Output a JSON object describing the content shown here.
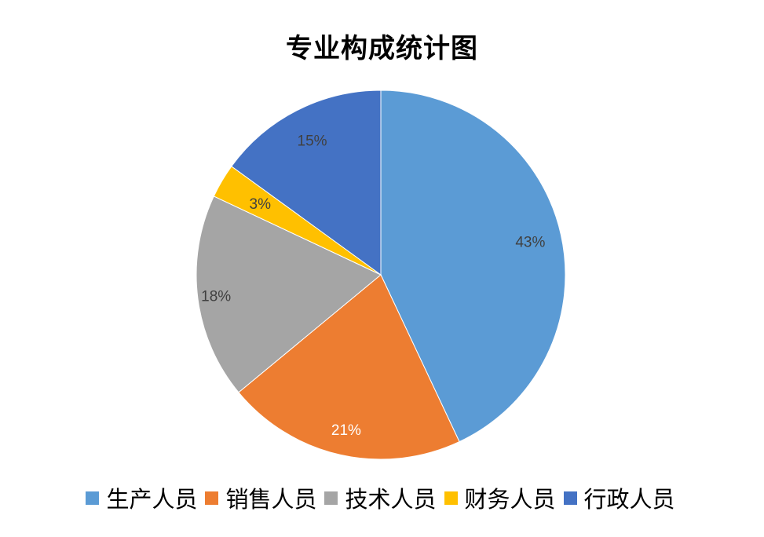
{
  "title": "专业构成统计图",
  "chart_data": {
    "type": "pie",
    "title": "专业构成统计图",
    "categories": [
      "生产人员",
      "销售人员",
      "技术人员",
      "财务人员",
      "行政人员"
    ],
    "values": [
      43,
      21,
      18,
      3,
      15
    ],
    "labels": [
      "43%",
      "21%",
      "18%",
      "3%",
      "15%"
    ],
    "colors": [
      "#5B9BD5",
      "#ED7D31",
      "#A5A5A5",
      "#FFC000",
      "#4472C4"
    ],
    "label_colors": [
      "#404040",
      "#FFFFFF",
      "#404040",
      "#404040",
      "#404040"
    ],
    "start_angle": "12 o'clock, clockwise",
    "legend_position": "bottom"
  },
  "legend": {
    "items": [
      {
        "label": "生产人员",
        "color": "#5B9BD5"
      },
      {
        "label": "销售人员",
        "color": "#ED7D31"
      },
      {
        "label": "技术人员",
        "color": "#A5A5A5"
      },
      {
        "label": "财务人员",
        "color": "#FFC000"
      },
      {
        "label": "行政人员",
        "color": "#4472C4"
      }
    ]
  }
}
